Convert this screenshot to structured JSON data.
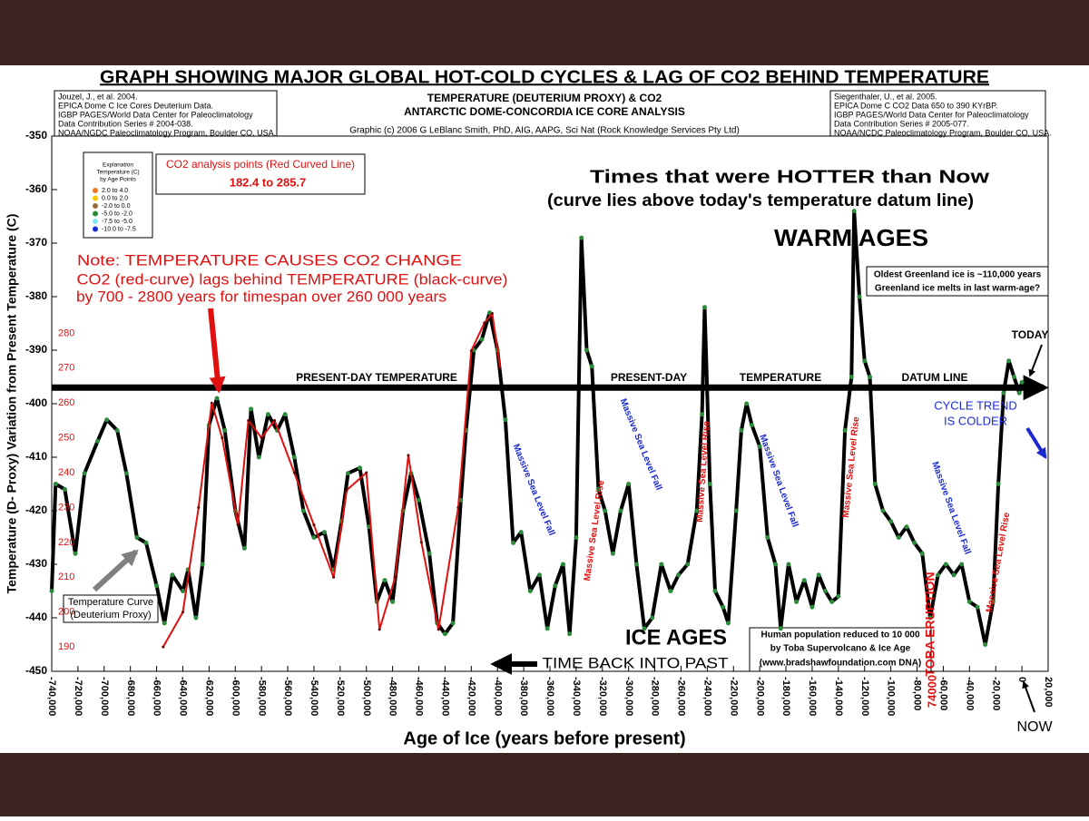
{
  "chart_data": {
    "type": "line",
    "title": "GRAPH SHOWING MAJOR  GLOBAL HOT-COLD CYCLES & LAG OF CO2 BEHIND TEMPERATURE",
    "subtitle": [
      "TEMPERATURE (DEUTERIUM PROXY)  &  CO2",
      "ANTARCTIC DOME-CONCORDIA ICE CORE ANALYSIS",
      "Graphic (c) 2006 G LeBlanc Smith, PhD, AIG, AAPG, Sci Nat (Rock Knowledge Services Pty Ltd)"
    ],
    "source_left": [
      "Jouzel, J., et al. 2004.",
      "EPICA Dome C Ice Cores Deuterium Data.",
      "IGBP PAGES/World Data Center for Paleoclimatology",
      "Data Contribution Series # 2004-038.",
      "NOAA/NGDC Paleoclimatology Program, Boulder CO, USA."
    ],
    "source_right": [
      "Siegenthaler, U., et al. 2005.",
      "EPICA Dome C CO2 Data 650 to 390 KYrBP.",
      "IGBP PAGES/World Data Center for Paleoclimatology",
      "Data Contribution Series # 2005-077.",
      "NOAA/NCDC Paleoclimatology Program, Boulder CO, USA."
    ],
    "x_label": "Age of Ice (years before present)",
    "y_label": "Temperature (D- Proxy) Variation from Present  Temperature (C)",
    "legend": {
      "title": [
        "Explanation",
        "Temperature (C)",
        "by Age Points"
      ],
      "items": [
        {
          "label": "2.0  to  4.0",
          "color": "#f07820"
        },
        {
          "label": "0.0  to  2.0",
          "color": "#f8c800"
        },
        {
          "label": "-2.0  to  0.0",
          "color": "#9a6a3a"
        },
        {
          "label": "-5.0  to  -2.0",
          "color": "#2a8a3a"
        },
        {
          "label": "-7.5  to  -5.0",
          "color": "#80e8f0"
        },
        {
          "label": "-10.0  to  -7.5",
          "color": "#1a2ad0"
        }
      ]
    },
    "co2_box": [
      "CO2 analysis points (Red Curved Line)",
      "182.4  to  285.7"
    ],
    "annotations": [
      "Times that were  HOTTER   than  Now",
      "(curve lies above today's temperature datum line)",
      "WARM  AGES",
      "ICE AGES",
      "TIME BACK INTO PAST",
      "Note: TEMPERATURE  CAUSES  CO2  CHANGE",
      "CO2 (red-curve)  lags  behind TEMPERATURE (black-curve)",
      "by 700 - 2800 years for timespan over 260 000 years",
      "PRESENT-DAY  TEMPERATURE",
      "PRESENT-DAY",
      "TEMPERATURE",
      "DATUM LINE",
      "Oldest Greenland ice is ~110,000 years",
      "Greenland ice melts in last warm-age?",
      "TODAY",
      "CYCLE TREND",
      "IS COLDER",
      "NOW",
      "Temperature Curve",
      "(Deuterium Proxy)",
      "Human population reduced to 10 000",
      "by Toba Supervolcano & Ice Age",
      "(www.bradshawfoundation.com DNA)",
      "TOBA  ERUPTION",
      "74000",
      "Massive  Sea  Level  Fall",
      "Massive  Sea  Level  Rise",
      "Massive  Sea  Level  Fall",
      "Massive  Sea  Level  Rise",
      "Massive  Sea  Level  Fall",
      "Massive  Sea  Level  Rise",
      "Massive  Sea  Level  Fall",
      "Massive  Sea  Level  Rise"
    ],
    "datum_line": -397,
    "xlim": [
      -740000,
      20000
    ],
    "ylim": [
      -450,
      -350
    ],
    "y2lim": [
      183,
      336.6
    ],
    "xticks": [
      {
        "value": -740000,
        "label": "-740,000"
      },
      {
        "value": -720000,
        "label": "-720,000"
      },
      {
        "value": -700000,
        "label": "-700,000"
      },
      {
        "value": -680000,
        "label": "-680,000"
      },
      {
        "value": -660000,
        "label": "-660,000"
      },
      {
        "value": -640000,
        "label": "-640,000"
      },
      {
        "value": -620000,
        "label": "-620,000"
      },
      {
        "value": -600000,
        "label": "-600,000"
      },
      {
        "value": -580000,
        "label": "-580,000"
      },
      {
        "value": -560000,
        "label": "-560,000"
      },
      {
        "value": -540000,
        "label": "-540,000"
      },
      {
        "value": -520000,
        "label": "-520,000"
      },
      {
        "value": -500000,
        "label": "-500,000"
      },
      {
        "value": -480000,
        "label": "-480,000"
      },
      {
        "value": -460000,
        "label": "-460,000"
      },
      {
        "value": -440000,
        "label": "-440,000"
      },
      {
        "value": -420000,
        "label": "-420,000"
      },
      {
        "value": -400000,
        "label": "-400,000"
      },
      {
        "value": -380000,
        "label": "-380,000"
      },
      {
        "value": -360000,
        "label": "-360,000"
      },
      {
        "value": -340000,
        "label": "-340,000"
      },
      {
        "value": -320000,
        "label": "-320,000"
      },
      {
        "value": -300000,
        "label": "-300,000"
      },
      {
        "value": -280000,
        "label": "-280,000"
      },
      {
        "value": -260000,
        "label": "-260,000"
      },
      {
        "value": -240000,
        "label": "-240,000"
      },
      {
        "value": -220000,
        "label": "-220,000"
      },
      {
        "value": -200000,
        "label": "-200,000"
      },
      {
        "value": -180000,
        "label": "-180,000"
      },
      {
        "value": -160000,
        "label": "-160,000"
      },
      {
        "value": -140000,
        "label": "-140,000"
      },
      {
        "value": -120000,
        "label": "-120,000"
      },
      {
        "value": -100000,
        "label": "-100,000"
      },
      {
        "value": -80000,
        "label": "-80,000"
      },
      {
        "value": -60000,
        "label": "-60,000"
      },
      {
        "value": -40000,
        "label": "-40,000"
      },
      {
        "value": -20000,
        "label": "-20,000"
      },
      0,
      {
        "value": 20000,
        "label": "20,000"
      }
    ],
    "yticks": [
      -350,
      -360,
      -370,
      -380,
      -390,
      -400,
      -410,
      -420,
      -430,
      -440,
      -450
    ],
    "y2ticks": [
      190,
      200,
      210,
      220,
      230,
      240,
      250,
      260,
      270,
      280
    ],
    "series": [
      {
        "name": "Temperature Curve",
        "color": "#000000",
        "x": [
          -740000,
          -737000,
          -730000,
          -722000,
          -715000,
          -705000,
          -698000,
          -690000,
          -683000,
          -675000,
          -668000,
          -660000,
          -654000,
          -648000,
          -640000,
          -636000,
          -630000,
          -625000,
          -620000,
          -614000,
          -608000,
          -600000,
          -593000,
          -588000,
          -582000,
          -575000,
          -568000,
          -562000,
          -555000,
          -548000,
          -540000,
          -532000,
          -525000,
          -519000,
          -514000,
          -505000,
          -498000,
          -492000,
          -486000,
          -480000,
          -472000,
          -466000,
          -460000,
          -452000,
          -446000,
          -440000,
          -434000,
          -428000,
          -424000,
          -418000,
          -412000,
          -406000,
          -400000,
          -394000,
          -388000,
          -382000,
          -375000,
          -368000,
          -362000,
          -356000,
          -350000,
          -345000,
          -340000,
          -336000,
          -332000,
          -328000,
          -323000,
          -318000,
          -312000,
          -306000,
          -300000,
          -294000,
          -288000,
          -282000,
          -275000,
          -268000,
          -262000,
          -255000,
          -248000,
          -244000,
          -242000,
          -238000,
          -234000,
          -228000,
          -224000,
          -218000,
          -214000,
          -210000,
          -206000,
          -200000,
          -194000,
          -188000,
          -184000,
          -178000,
          -172000,
          -166000,
          -160000,
          -155000,
          -150000,
          -145000,
          -140000,
          -135000,
          -130000,
          -128000,
          -124000,
          -120000,
          -116000,
          -112000,
          -106000,
          -100000,
          -94000,
          -88000,
          -82000,
          -76000,
          -70000,
          -64000,
          -58000,
          -52000,
          -46000,
          -40000,
          -34000,
          -28000,
          -22000,
          -18000,
          -14000,
          -10000,
          -6000,
          -2000,
          0
        ],
        "values": [
          -435,
          -415,
          -416,
          -428,
          -413,
          -407,
          -403,
          -405,
          -413,
          -425,
          -426,
          -434,
          -441,
          -432,
          -435,
          -431,
          -440,
          -430,
          -404,
          -399,
          -405,
          -420,
          -427,
          -401,
          -410,
          -402,
          -405,
          -402,
          -410,
          -420,
          -425,
          -424,
          -431,
          -422,
          -413,
          -412,
          -423,
          -437,
          -433,
          -437,
          -420,
          -413,
          -418,
          -428,
          -441,
          -443,
          -441,
          -418,
          -405,
          -390,
          -388,
          -383,
          -390,
          -403,
          -426,
          -424,
          -435,
          -432,
          -442,
          -434,
          -430,
          -443,
          -425,
          -369,
          -390,
          -393,
          -416,
          -420,
          -428,
          -420,
          -415,
          -430,
          -442,
          -440,
          -430,
          -435,
          -432,
          -430,
          -420,
          -402,
          -382,
          -415,
          -435,
          -438,
          -441,
          -420,
          -405,
          -400,
          -404,
          -408,
          -425,
          -430,
          -442,
          -430,
          -437,
          -433,
          -438,
          -432,
          -435,
          -437,
          -436,
          -405,
          -395,
          -364,
          -380,
          -392,
          -395,
          -415,
          -420,
          -422,
          -425,
          -423,
          -426,
          -428,
          -440,
          -432,
          -430,
          -432,
          -430,
          -437,
          -438,
          -445,
          -437,
          -415,
          -398,
          -392,
          -395,
          -398,
          -396
        ]
      },
      {
        "name": "CO2 analysis points (Red Curved Line)",
        "color": "#e01010",
        "axis": "y2",
        "x": [
          -655000,
          -640000,
          -628000,
          -618000,
          -610000,
          -598000,
          -590000,
          -580000,
          -570000,
          -555000,
          -540000,
          -525000,
          -515000,
          -500000,
          -490000,
          -478000,
          -468000,
          -458000,
          -445000,
          -430000,
          -420000,
          -410000,
          -404000,
          -398000
        ],
        "values": [
          190,
          200,
          230,
          260,
          250,
          225,
          255,
          250,
          255,
          240,
          225,
          210,
          235,
          240,
          195,
          210,
          245,
          220,
          195,
          230,
          275,
          283,
          285.7,
          270
        ]
      }
    ]
  }
}
